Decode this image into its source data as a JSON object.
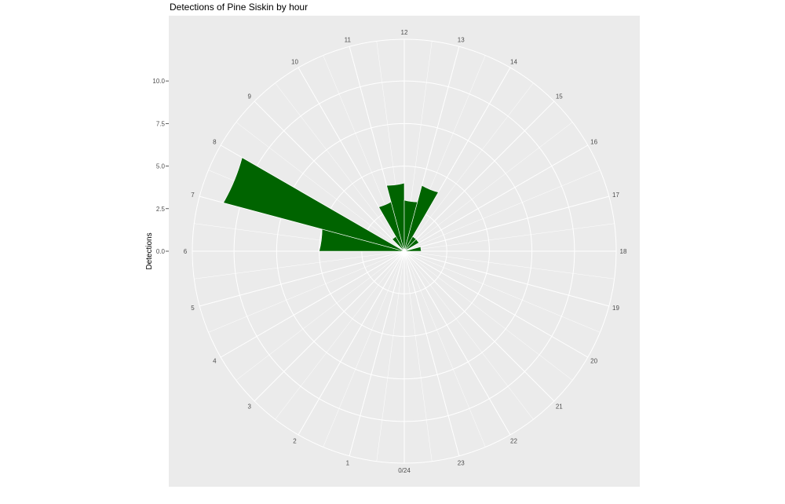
{
  "chart_data": {
    "type": "bar",
    "coord": "polar",
    "title": "Detections of Pine Siskin by hour",
    "xlabel": "",
    "ylabel": "Detections",
    "categories": [
      "0/24",
      "1",
      "2",
      "3",
      "4",
      "5",
      "6",
      "7",
      "8",
      "9",
      "10",
      "11",
      "12",
      "13",
      "14",
      "15",
      "16",
      "17",
      "18",
      "19",
      "20",
      "21",
      "22",
      "23"
    ],
    "values": [
      0,
      0,
      0,
      0,
      0,
      0,
      5,
      11,
      0,
      1,
      3,
      4,
      3,
      4,
      1,
      1,
      0,
      1,
      0,
      0,
      0,
      0,
      0,
      0
    ],
    "yticks": [
      "0.0",
      "2.5",
      "5.0",
      "7.5",
      "10.0"
    ],
    "ylim": [
      0,
      12.45
    ],
    "grid": true,
    "bar_color": "#006400",
    "panel_color": "#EBEBEB"
  }
}
